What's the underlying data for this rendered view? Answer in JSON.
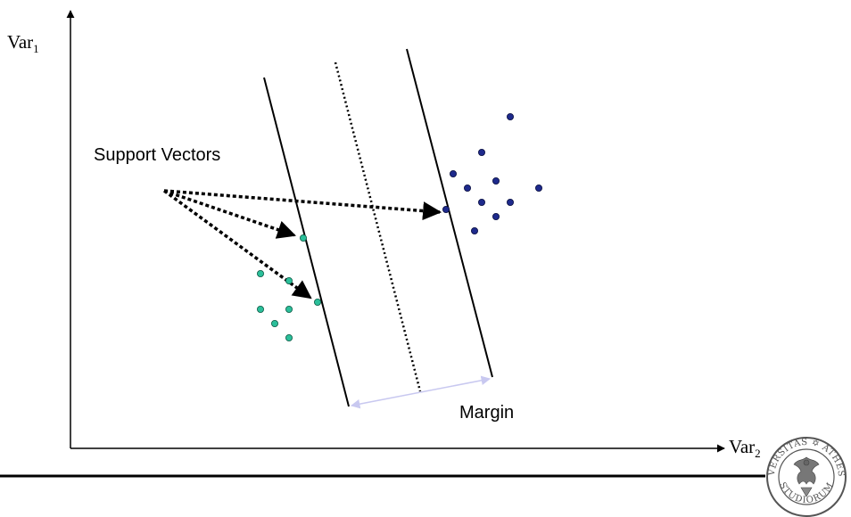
{
  "labels": {
    "y_axis_prefix": "Var",
    "y_axis_sub": "1",
    "x_axis_prefix": "Var",
    "x_axis_sub": "2",
    "support_vectors": "Support Vectors",
    "margin": "Margin"
  },
  "seal": {
    "top_text": "UNIVERSITAS ✡ ATHESINA",
    "bottom_text": "STUDIORUM",
    "color": "#555555"
  },
  "colors": {
    "class_a": "#1e2a8c",
    "class_b": "#2bbf9a",
    "margin_arrow": "#c8c8f0",
    "lines": "#000000"
  }
}
